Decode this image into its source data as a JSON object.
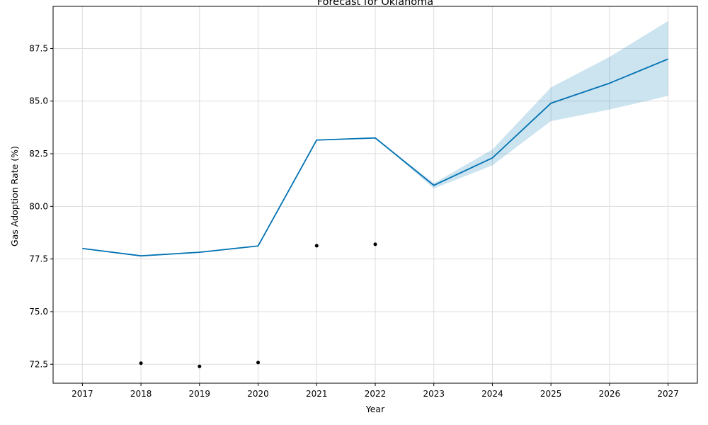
{
  "chart_data": {
    "type": "line",
    "title": "Forecast for Oklahoma",
    "xlabel": "Year",
    "ylabel": "Gas Adoption Rate (%)",
    "xlim": [
      2016.5,
      2027.5
    ],
    "ylim": [
      71.6,
      89.5
    ],
    "x_ticks": [
      2017,
      2018,
      2019,
      2020,
      2021,
      2022,
      2023,
      2024,
      2025,
      2026,
      2027
    ],
    "y_ticks": [
      72.5,
      75.0,
      77.5,
      80.0,
      82.5,
      85.0,
      87.5
    ],
    "grid": true,
    "colors": {
      "forecast_line": "#0072B2",
      "uncertainty_band": "#0072B2",
      "observed_points": "#000000"
    },
    "forecast": {
      "x": [
        2017,
        2018,
        2019,
        2020,
        2021,
        2022,
        2023,
        2024,
        2025,
        2026,
        2027
      ],
      "y": [
        78.0,
        77.65,
        77.82,
        78.12,
        83.15,
        83.25,
        81.0,
        82.3,
        84.9,
        85.85,
        87.0
      ]
    },
    "uncertainty": {
      "x": [
        2017,
        2018,
        2019,
        2020,
        2021,
        2022,
        2023,
        2024,
        2025,
        2026,
        2027
      ],
      "lower": [
        78.0,
        77.65,
        77.82,
        78.12,
        83.15,
        83.25,
        80.85,
        81.95,
        84.05,
        84.6,
        85.25
      ],
      "upper": [
        78.0,
        77.65,
        77.82,
        78.12,
        83.15,
        83.25,
        81.1,
        82.7,
        85.65,
        87.1,
        88.8
      ]
    },
    "observed": {
      "x": [
        2018,
        2019,
        2020,
        2021,
        2022
      ],
      "y": [
        72.55,
        72.4,
        72.58,
        78.13,
        78.2
      ]
    }
  }
}
